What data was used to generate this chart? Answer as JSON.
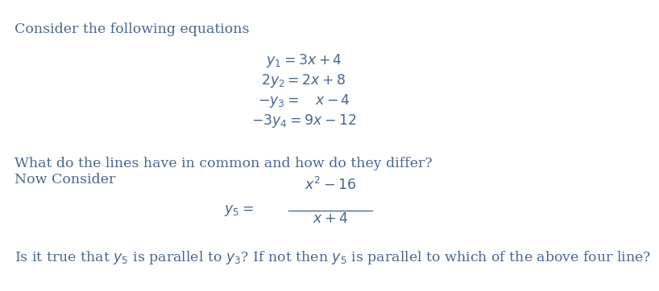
{
  "background_color": "#ffffff",
  "text_color": "#4a6791",
  "title_text": "Consider the following equations",
  "question1": "What do the lines have in common and how do they differ?",
  "question2": "Now Consider",
  "question3": "Is it true that $y_5$ is parallel to $y_3$? If not then $y_5$ is parallel to which of the above four line?",
  "font_size": 12.5
}
